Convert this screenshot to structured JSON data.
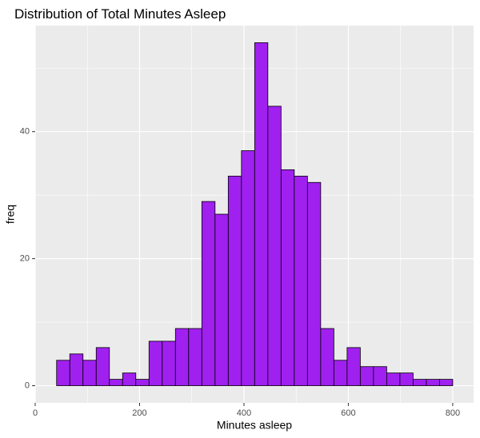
{
  "chart_data": {
    "type": "histogram",
    "title": "Distribution of Total Minutes Asleep",
    "x_label": "Minutes asleep",
    "y_label": "freq",
    "bins": [
      41,
      66.3,
      91.6,
      116.9,
      142.2,
      167.5,
      192.8,
      218.1,
      243.4,
      268.7,
      294,
      319.3,
      344.6,
      369.9,
      395.2,
      420.5,
      445.8,
      471.1,
      496.4,
      521.7,
      547,
      572.3,
      597.6,
      622.9,
      648.2,
      673.5,
      698.8,
      724.1,
      749.4,
      774.7,
      800
    ],
    "values": [
      4,
      5,
      4,
      6,
      1,
      2,
      1,
      7,
      7,
      9,
      9,
      29,
      27,
      33,
      37,
      54,
      44,
      34,
      33,
      32,
      9,
      4,
      6,
      3,
      3,
      2,
      2,
      1,
      1,
      1
    ],
    "color": "#a020f0",
    "edge_color": "#000000",
    "xlim": [
      0,
      840
    ],
    "ylim": [
      -2.7,
      56.7
    ],
    "xticks": [
      0,
      200,
      400,
      600,
      800
    ],
    "yticks": [
      0,
      20,
      40
    ],
    "x_minor_grid": [
      100,
      300,
      500,
      700
    ],
    "y_minor_grid": [
      10,
      30,
      50
    ],
    "grid": true,
    "panel_color": "#ebebeb"
  }
}
